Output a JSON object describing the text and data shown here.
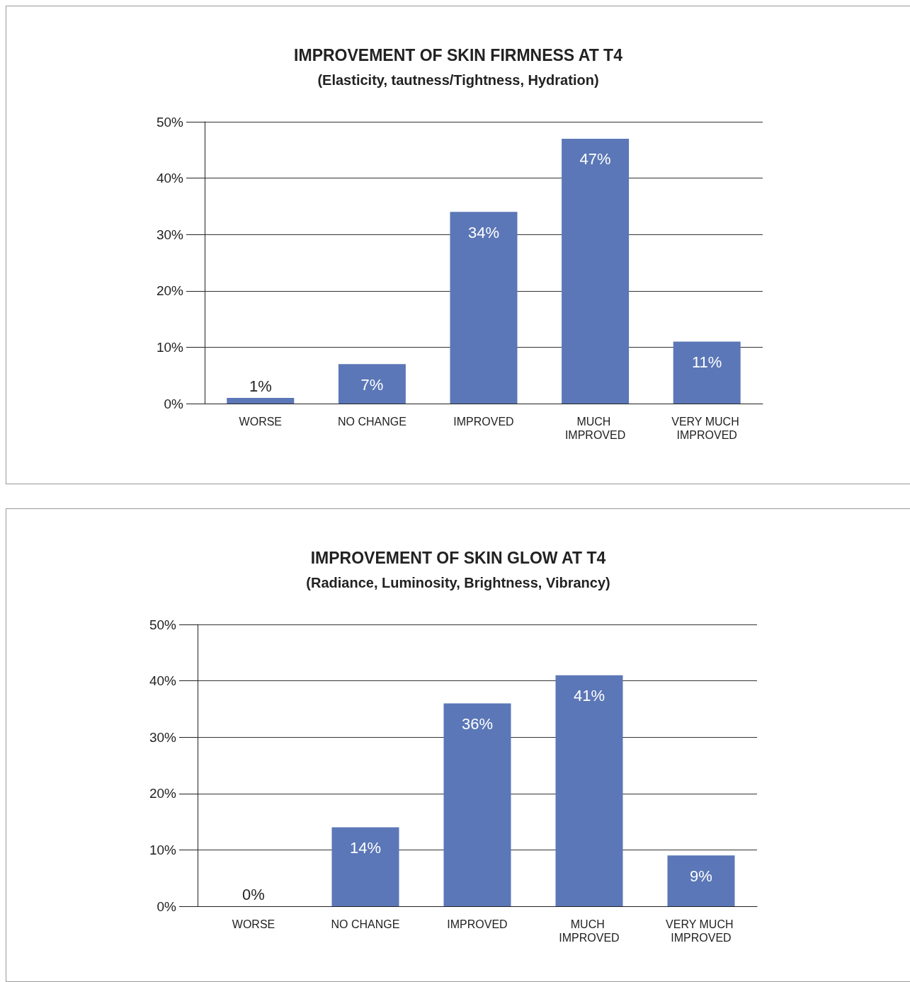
{
  "chart_data": [
    {
      "type": "bar",
      "title": "IMPROVEMENT OF SKIN FIRMNESS AT T4",
      "subtitle": "(Elasticity, tautness/Tightness, Hydration)",
      "categories": [
        "WORSE",
        "NO CHANGE",
        "IMPROVED",
        "MUCH IMPROVED",
        "VERY MUCH IMPROVED"
      ],
      "values": [
        1,
        7,
        34,
        47,
        11
      ],
      "value_labels": [
        "1%",
        "7%",
        "34%",
        "47%",
        "11%"
      ],
      "color": "#5b77b7",
      "ylim": [
        0,
        50
      ],
      "yticks": [
        {
          "value": 0,
          "label": "0%"
        },
        {
          "value": 10,
          "label": "10%"
        },
        {
          "value": 20,
          "label": "20%"
        },
        {
          "value": 30,
          "label": "30%"
        },
        {
          "value": 40,
          "label": "40%"
        },
        {
          "value": 50,
          "label": "50%"
        }
      ],
      "grid": "y"
    },
    {
      "type": "bar",
      "title": "IMPROVEMENT OF SKIN GLOW AT T4",
      "subtitle": "(Radiance, Luminosity, Brightness, Vibrancy)",
      "categories": [
        "WORSE",
        "NO CHANGE",
        "IMPROVED",
        "MUCH IMPROVED",
        "VERY MUCH IMPROVED"
      ],
      "values": [
        0,
        14,
        36,
        41,
        9
      ],
      "value_labels": [
        "0%",
        "14%",
        "36%",
        "41%",
        "9%"
      ],
      "color": "#5b77b7",
      "ylim": [
        0,
        50
      ],
      "yticks": [
        {
          "value": 0,
          "label": "0%"
        },
        {
          "value": 10,
          "label": "10%"
        },
        {
          "value": 20,
          "label": "20%"
        },
        {
          "value": 30,
          "label": "30%"
        },
        {
          "value": 40,
          "label": "40%"
        },
        {
          "value": 50,
          "label": "50%"
        }
      ],
      "grid": "y"
    }
  ]
}
